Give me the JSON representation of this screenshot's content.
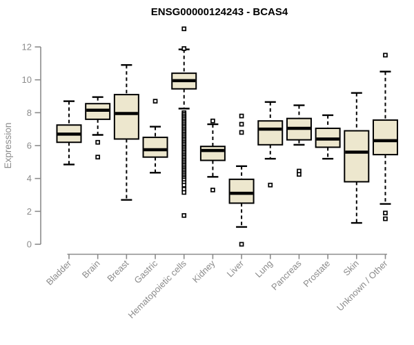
{
  "header": {
    "title": "ENSG00000124243 - BCAS4"
  },
  "colors": {
    "background": "#FFFFFF",
    "title": "#000000",
    "axis": "#8B8B8B",
    "tick_label": "#8B8B8B",
    "box_fill": "#EDE7CE",
    "box_border": "#000000",
    "median": "#000000",
    "outlier_fill": "#FFFFFF"
  },
  "chart_data": {
    "type": "boxplot",
    "title": "ENSG00000124243 - BCAS4",
    "xlabel": "",
    "ylabel": "Expression",
    "ylim": [
      0,
      13.5
    ],
    "yticks": [
      0,
      2,
      4,
      6,
      8,
      10,
      12
    ],
    "grid": false,
    "legend": "none",
    "categories": [
      "Bladder",
      "Brain",
      "Breast",
      "Gastric",
      "Hematopoietic cells",
      "Kidney",
      "Liver",
      "Lung",
      "Pancreas",
      "Prostate",
      "Skin",
      "Unknown / Other"
    ],
    "boxes": [
      {
        "name": "Bladder",
        "whisker_low": 4.85,
        "q1": 6.2,
        "median": 6.7,
        "q3": 7.25,
        "whisker_high": 8.7,
        "outliers": []
      },
      {
        "name": "Brain",
        "whisker_low": 6.65,
        "q1": 7.6,
        "median": 8.15,
        "q3": 8.55,
        "whisker_high": 8.95,
        "outliers": [
          6.2,
          5.3
        ]
      },
      {
        "name": "Breast",
        "whisker_low": 2.7,
        "q1": 6.4,
        "median": 7.95,
        "q3": 9.1,
        "whisker_high": 10.9,
        "outliers": []
      },
      {
        "name": "Gastric",
        "whisker_low": 4.35,
        "q1": 5.3,
        "median": 5.75,
        "q3": 6.5,
        "whisker_high": 7.15,
        "outliers": [
          8.7
        ]
      },
      {
        "name": "Hematopoietic cells",
        "whisker_low": 8.25,
        "q1": 9.45,
        "median": 9.95,
        "q3": 10.4,
        "whisker_high": 11.85,
        "outliers": [
          13.1,
          11.9,
          8.0,
          7.9,
          7.8,
          7.7,
          7.6,
          7.5,
          7.4,
          7.3,
          7.2,
          7.1,
          7.0,
          6.9,
          6.8,
          6.7,
          6.6,
          6.5,
          6.4,
          6.3,
          6.2,
          6.1,
          6.0,
          5.9,
          5.8,
          5.7,
          5.6,
          5.5,
          5.4,
          5.3,
          5.2,
          5.1,
          5.0,
          4.9,
          4.8,
          4.7,
          4.6,
          4.5,
          4.4,
          4.3,
          4.2,
          4.1,
          4.0,
          3.9,
          3.75,
          3.6,
          3.35,
          3.15,
          1.75
        ]
      },
      {
        "name": "Kidney",
        "whisker_low": 4.1,
        "q1": 5.1,
        "median": 5.7,
        "q3": 5.95,
        "whisker_high": 7.3,
        "outliers": [
          7.5,
          3.3
        ]
      },
      {
        "name": "Liver",
        "whisker_low": 1.05,
        "q1": 2.5,
        "median": 3.1,
        "q3": 3.95,
        "whisker_high": 4.75,
        "outliers": [
          7.8,
          7.3,
          6.8,
          0.0
        ]
      },
      {
        "name": "Lung",
        "whisker_low": 5.2,
        "q1": 6.05,
        "median": 7.0,
        "q3": 7.5,
        "whisker_high": 8.65,
        "outliers": [
          3.6
        ]
      },
      {
        "name": "Pancreas",
        "whisker_low": 6.05,
        "q1": 6.35,
        "median": 7.05,
        "q3": 7.65,
        "whisker_high": 8.45,
        "outliers": [
          4.45,
          4.25
        ]
      },
      {
        "name": "Prostate",
        "whisker_low": 5.2,
        "q1": 5.9,
        "median": 6.4,
        "q3": 7.05,
        "whisker_high": 7.85,
        "outliers": []
      },
      {
        "name": "Skin",
        "whisker_low": 1.3,
        "q1": 3.8,
        "median": 5.6,
        "q3": 6.9,
        "whisker_high": 9.2,
        "outliers": []
      },
      {
        "name": "Unknown / Other",
        "whisker_low": 2.45,
        "q1": 5.45,
        "median": 6.3,
        "q3": 7.55,
        "whisker_high": 10.5,
        "outliers": [
          11.5,
          1.9,
          1.55
        ]
      }
    ]
  }
}
